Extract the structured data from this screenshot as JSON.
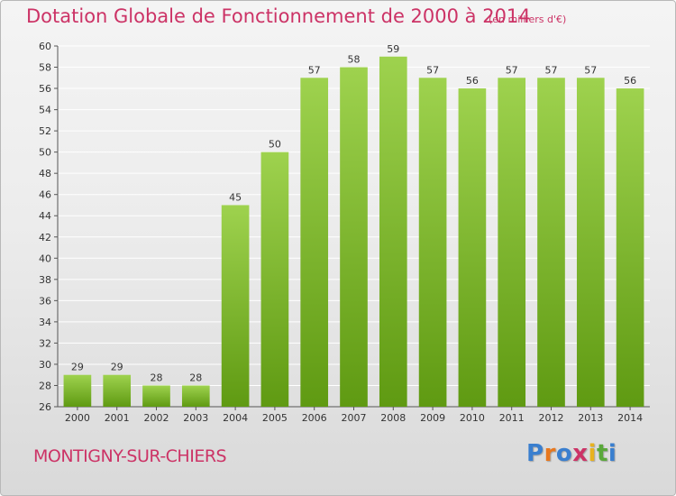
{
  "header": {
    "title": "Dotation Globale de Fonctionnement de 2000 à 2014",
    "unit": "(en milliers d'€)"
  },
  "footer": {
    "commune": "MONTIGNY-SUR-CHIERS",
    "logo": [
      "P",
      "r",
      "o",
      "x",
      "i",
      "t",
      "i"
    ],
    "logo_colors": [
      "#3a7fcf",
      "#e8781e",
      "#3a7fcf",
      "#cc3366",
      "#e8b21e",
      "#5aa83a",
      "#3a7fcf"
    ]
  },
  "colors": {
    "accent": "#cc3366",
    "bar_top": "#9ed24e",
    "bar_bottom": "#5f9a12",
    "grid": "#ffffff"
  },
  "chart_data": {
    "type": "bar",
    "title": "Dotation Globale de Fonctionnement de 2000 à 2014",
    "subtitle": "(en milliers d'€)",
    "xlabel": "",
    "ylabel": "",
    "categories": [
      "2000",
      "2001",
      "2002",
      "2003",
      "2004",
      "2005",
      "2006",
      "2007",
      "2008",
      "2009",
      "2010",
      "2011",
      "2012",
      "2013",
      "2014"
    ],
    "values": [
      29,
      29,
      28,
      28,
      45,
      50,
      57,
      58,
      59,
      57,
      56,
      57,
      57,
      57,
      56
    ],
    "ylim": [
      26,
      60
    ],
    "yticks": [
      26,
      28,
      30,
      32,
      34,
      36,
      38,
      40,
      42,
      44,
      46,
      48,
      50,
      52,
      54,
      56,
      58,
      60
    ],
    "grid": true,
    "legend": "none"
  }
}
